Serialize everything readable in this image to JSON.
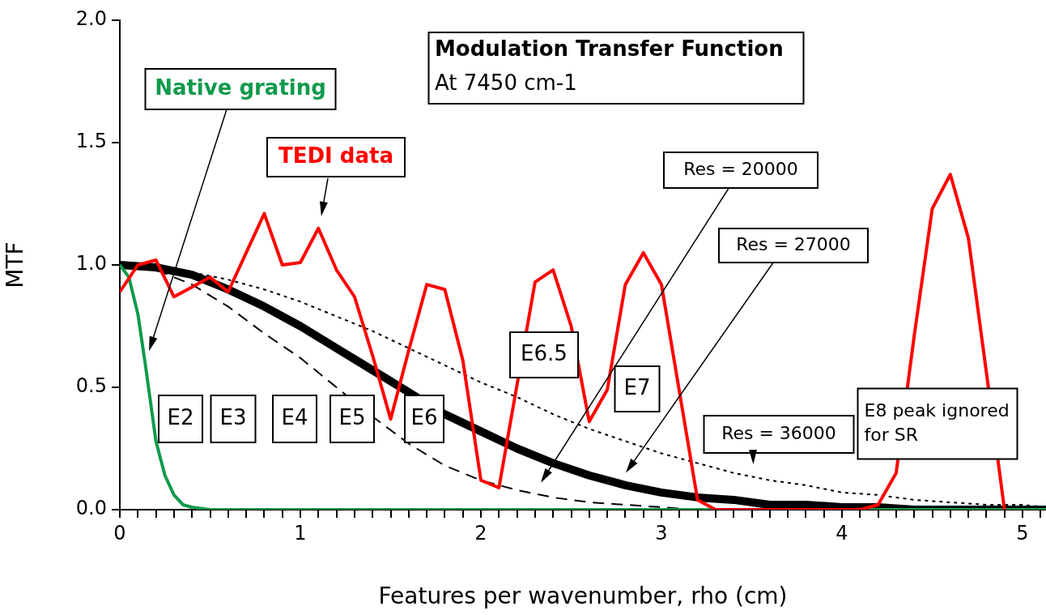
{
  "chart_data": {
    "type": "line",
    "title": "Modulation Transfer Function",
    "subtitle": "At 7450 cm-1",
    "xlabel": "Features per wavenumber, rho (cm)",
    "ylabel": "MTF",
    "xlim": [
      0,
      5.13
    ],
    "ylim": [
      0,
      2
    ],
    "xticks": [
      0,
      {
        "value": 0.1,
        "label": null
      },
      {
        "value": 0.2,
        "label": null
      },
      {
        "value": 0.3,
        "label": null
      },
      {
        "value": 0.4,
        "label": null
      },
      {
        "value": 0.5,
        "label": null
      },
      {
        "value": 0.6,
        "label": null
      },
      {
        "value": 0.7,
        "label": null
      },
      {
        "value": 0.8,
        "label": null
      },
      {
        "value": 0.9,
        "label": null
      },
      1,
      {
        "value": 1.1,
        "label": null
      },
      {
        "value": 1.2,
        "label": null
      },
      {
        "value": 1.3,
        "label": null
      },
      {
        "value": 1.4,
        "label": null
      },
      {
        "value": 1.5,
        "label": null
      },
      {
        "value": 1.6,
        "label": null
      },
      {
        "value": 1.7,
        "label": null
      },
      {
        "value": 1.8,
        "label": null
      },
      {
        "value": 1.9,
        "label": null
      },
      2,
      {
        "value": 2.1,
        "label": null
      },
      {
        "value": 2.2,
        "label": null
      },
      {
        "value": 2.3,
        "label": null
      },
      {
        "value": 2.4,
        "label": null
      },
      {
        "value": 2.5,
        "label": null
      },
      {
        "value": 2.6,
        "label": null
      },
      {
        "value": 2.7,
        "label": null
      },
      {
        "value": 2.8,
        "label": null
      },
      {
        "value": 2.9,
        "label": null
      },
      3,
      {
        "value": 3.1,
        "label": null
      },
      {
        "value": 3.2,
        "label": null
      },
      {
        "value": 3.3,
        "label": null
      },
      {
        "value": 3.4,
        "label": null
      },
      {
        "value": 3.5,
        "label": null
      },
      {
        "value": 3.6,
        "label": null
      },
      {
        "value": 3.7,
        "label": null
      },
      {
        "value": 3.8,
        "label": null
      },
      {
        "value": 3.9,
        "label": null
      },
      4,
      {
        "value": 4.1,
        "label": null
      },
      {
        "value": 4.2,
        "label": null
      },
      {
        "value": 4.3,
        "label": null
      },
      {
        "value": 4.4,
        "label": null
      },
      {
        "value": 4.5,
        "label": null
      },
      {
        "value": 4.6,
        "label": null
      },
      {
        "value": 4.7,
        "label": null
      },
      {
        "value": 4.8,
        "label": null
      },
      {
        "value": 4.9,
        "label": null
      },
      5,
      {
        "value": 5.1,
        "label": null
      }
    ],
    "yticks": [
      {
        "value": 0,
        "label": "0.0"
      },
      {
        "value": 0.5,
        "label": "0.5"
      },
      {
        "value": 1,
        "label": "1.0"
      },
      {
        "value": 1.5,
        "label": "1.5"
      },
      {
        "value": 2,
        "label": "2.0"
      }
    ],
    "grid": false,
    "legend": false,
    "marker": "none",
    "series": [
      {
        "name": "Native grating",
        "color": "#109a4c",
        "line_style": "solid",
        "x": [
          0,
          0.05,
          0.1,
          0.14,
          0.2,
          0.25,
          0.3,
          0.35,
          0.4,
          0.5,
          5.13
        ],
        "values": [
          1,
          0.95,
          0.8,
          0.6,
          0.28,
          0.14,
          0.06,
          0.02,
          0.01,
          0,
          0
        ]
      },
      {
        "name": "TEDI data",
        "color": "#ff0000",
        "line_style": "solid",
        "x": [
          0,
          0.1,
          0.2,
          0.3,
          0.4,
          0.5,
          0.6,
          0.7,
          0.8,
          0.9,
          1,
          1.1,
          1.2,
          1.3,
          1.4,
          1.5,
          1.6,
          1.7,
          1.8,
          1.9,
          2,
          2.1,
          2.2,
          2.3,
          2.4,
          2.5,
          2.6,
          2.7,
          2.8,
          2.9,
          3,
          3.1,
          3.2,
          3.3,
          3.4,
          3.5,
          3.6,
          3.7,
          3.8,
          3.9,
          4,
          4.1,
          4.2,
          4.3,
          4.4,
          4.5,
          4.6,
          4.7,
          4.8,
          4.9
        ],
        "values": [
          0.89,
          1,
          1.02,
          0.87,
          0.91,
          0.95,
          0.89,
          1.05,
          1.21,
          1,
          1.01,
          1.15,
          0.98,
          0.87,
          0.63,
          0.37,
          0.65,
          0.92,
          0.9,
          0.61,
          0.12,
          0.09,
          0.51,
          0.93,
          0.98,
          0.75,
          0.36,
          0.49,
          0.92,
          1.05,
          0.92,
          0.48,
          0.04,
          0,
          0,
          0,
          0,
          0,
          0,
          0,
          0,
          0,
          0.02,
          0.15,
          0.71,
          1.23,
          1.37,
          1.11,
          0.56,
          0
        ]
      },
      {
        "name": "Res = 20000",
        "color": "#000000",
        "line_style": "dashed",
        "x": [
          0,
          0.2,
          0.4,
          0.6,
          0.8,
          1,
          1.2,
          1.4,
          1.6,
          1.8,
          2,
          2.2,
          2.4,
          2.6,
          2.8,
          3,
          3.2,
          3.4,
          3.6,
          3.8,
          4,
          4.2,
          4.4,
          4.6,
          4.8,
          5,
          5.13
        ],
        "values": [
          1,
          0.98,
          0.92,
          0.83,
          0.72,
          0.62,
          0.5,
          0.38,
          0.27,
          0.18,
          0.12,
          0.08,
          0.05,
          0.03,
          0.02,
          0.01,
          0,
          0,
          0,
          0,
          0,
          0,
          0,
          0,
          0,
          0,
          0
        ]
      },
      {
        "name": "Res = 27000",
        "color": "#000000",
        "line_style": "solid",
        "x": [
          0,
          0.2,
          0.4,
          0.6,
          0.8,
          1,
          1.2,
          1.4,
          1.6,
          1.8,
          2,
          2.2,
          2.4,
          2.6,
          2.8,
          3,
          3.2,
          3.4,
          3.6,
          3.8,
          4,
          4.2,
          4.4,
          4.6,
          4.8,
          5,
          5.13
        ],
        "values": [
          1,
          0.99,
          0.96,
          0.9,
          0.83,
          0.75,
          0.66,
          0.57,
          0.48,
          0.39,
          0.32,
          0.25,
          0.19,
          0.14,
          0.1,
          0.07,
          0.05,
          0.04,
          0.02,
          0.02,
          0.01,
          0.01,
          0,
          0,
          0,
          0,
          0
        ]
      },
      {
        "name": "Res = 36000",
        "color": "#000000",
        "line_style": "dotted",
        "x": [
          0,
          0.2,
          0.4,
          0.6,
          0.8,
          1,
          1.2,
          1.4,
          1.6,
          1.8,
          2,
          2.2,
          2.4,
          2.6,
          2.8,
          3,
          3.2,
          3.4,
          3.6,
          3.8,
          4,
          4.2,
          4.4,
          4.6,
          4.8,
          5,
          5.13
        ],
        "values": [
          1,
          0.99,
          0.97,
          0.94,
          0.9,
          0.85,
          0.79,
          0.73,
          0.66,
          0.59,
          0.52,
          0.46,
          0.39,
          0.33,
          0.28,
          0.23,
          0.19,
          0.15,
          0.12,
          0.1,
          0.07,
          0.06,
          0.04,
          0.03,
          0.02,
          0.02,
          0.01
        ]
      }
    ],
    "annotations": [
      "E2",
      "E3",
      "E4",
      "E5",
      "E6",
      "E6.5",
      "E7",
      "E8 peak ignored for SR"
    ]
  }
}
